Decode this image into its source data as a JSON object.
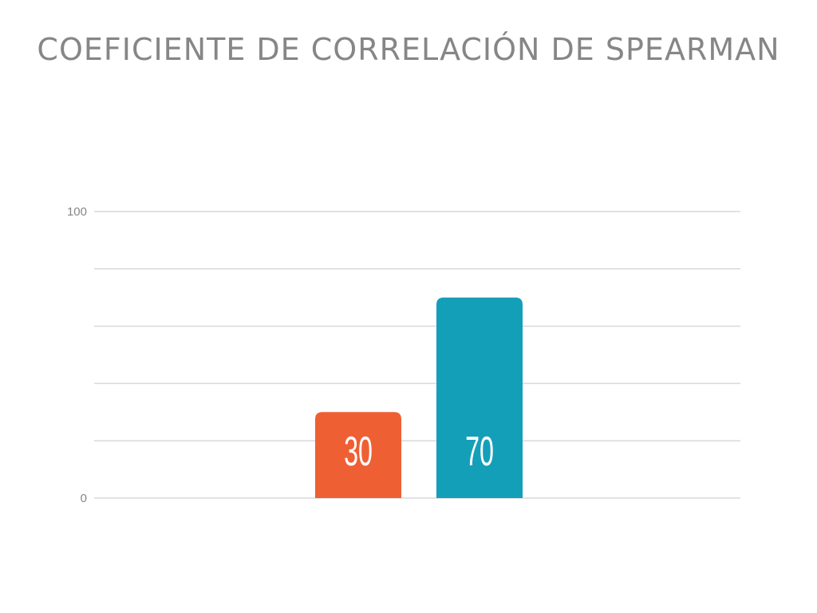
{
  "chart_data": {
    "type": "bar",
    "title": "COEFICIENTE DE CORRELACIÓN DE SPEARMAN",
    "categories": [
      "",
      ""
    ],
    "values": [
      30,
      70
    ],
    "colors": [
      "#ef5f34",
      "#149fb9"
    ],
    "data_labels": [
      "30",
      "70"
    ],
    "ylim": [
      0,
      100
    ],
    "y_ticks": [
      {
        "value": 0,
        "label": "0"
      },
      {
        "value": 100,
        "label": "100"
      }
    ],
    "gridline_values": [
      0,
      20,
      40,
      60,
      80,
      100
    ],
    "grid": true,
    "gridline_color": "#d9d9d9",
    "legend": "none"
  }
}
